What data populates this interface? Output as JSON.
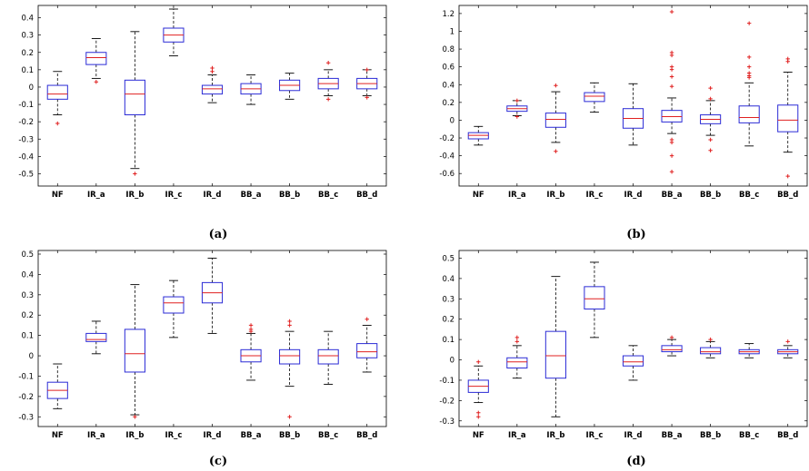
{
  "chart_data": [
    {
      "type": "boxplot",
      "label": "(a)",
      "categories": [
        "NF",
        "IR_a",
        "IR_b",
        "IR_c",
        "IR_d",
        "BB_a",
        "BB_b",
        "BB_c",
        "BB_d"
      ],
      "ylim": [
        -0.55,
        0.45
      ],
      "yticks": [
        "0.4",
        "0.3",
        "0.2",
        "0.1",
        "0",
        "-0.1",
        "-0.2",
        "-0.3",
        "-0.4",
        "-0.5"
      ],
      "boxes": [
        {
          "wl": -0.16,
          "q1": -0.07,
          "med": -0.04,
          "q3": 0.01,
          "wh": 0.09,
          "outliers": [
            -0.21
          ]
        },
        {
          "wl": 0.05,
          "q1": 0.13,
          "med": 0.17,
          "q3": 0.2,
          "wh": 0.28,
          "outliers": [
            0.03
          ]
        },
        {
          "wl": -0.47,
          "q1": -0.16,
          "med": -0.04,
          "q3": 0.04,
          "wh": 0.32,
          "outliers": [
            -0.5
          ]
        },
        {
          "wl": 0.18,
          "q1": 0.26,
          "med": 0.3,
          "q3": 0.34,
          "wh": 0.45,
          "outliers": []
        },
        {
          "wl": -0.09,
          "q1": -0.04,
          "med": -0.01,
          "q3": 0.01,
          "wh": 0.07,
          "outliers": [
            0.09,
            0.11
          ]
        },
        {
          "wl": -0.1,
          "q1": -0.04,
          "med": -0.01,
          "q3": 0.02,
          "wh": 0.07,
          "outliers": []
        },
        {
          "wl": -0.07,
          "q1": -0.02,
          "med": 0.01,
          "q3": 0.04,
          "wh": 0.08,
          "outliers": []
        },
        {
          "wl": -0.05,
          "q1": -0.01,
          "med": 0.02,
          "q3": 0.05,
          "wh": 0.1,
          "outliers": [
            0.14,
            -0.07
          ]
        },
        {
          "wl": -0.05,
          "q1": -0.01,
          "med": 0.02,
          "q3": 0.05,
          "wh": 0.1,
          "outliers": [
            0.1,
            -0.06
          ]
        }
      ]
    },
    {
      "type": "boxplot",
      "label": "(b)",
      "categories": [
        "NF",
        "IR_a",
        "IR_b",
        "IR_c",
        "IR_d",
        "BB_a",
        "BB_b",
        "BB_c",
        "BB_d"
      ],
      "ylim": [
        -0.7,
        1.25
      ],
      "yticks": [
        "1.2",
        "1",
        "0.8",
        "0.6",
        "0.4",
        "0.2",
        "0",
        "-0.2",
        "-0.4",
        "-0.6"
      ],
      "boxes": [
        {
          "wl": -0.28,
          "q1": -0.21,
          "med": -0.17,
          "q3": -0.14,
          "wh": -0.07,
          "outliers": []
        },
        {
          "wl": 0.05,
          "q1": 0.1,
          "med": 0.13,
          "q3": 0.16,
          "wh": 0.22,
          "outliers": [
            0.04,
            0.22
          ]
        },
        {
          "wl": -0.25,
          "q1": -0.08,
          "med": 0.01,
          "q3": 0.08,
          "wh": 0.32,
          "outliers": [
            -0.35,
            0.39
          ]
        },
        {
          "wl": 0.09,
          "q1": 0.21,
          "med": 0.27,
          "q3": 0.31,
          "wh": 0.42,
          "outliers": []
        },
        {
          "wl": -0.28,
          "q1": -0.09,
          "med": 0.02,
          "q3": 0.13,
          "wh": 0.41,
          "outliers": []
        },
        {
          "wl": -0.15,
          "q1": -0.02,
          "med": 0.04,
          "q3": 0.11,
          "wh": 0.25,
          "outliers": [
            1.22,
            0.76,
            0.73,
            0.6,
            0.57,
            0.49,
            0.38,
            -0.22,
            -0.25,
            -0.4,
            -0.58
          ]
        },
        {
          "wl": -0.17,
          "q1": -0.04,
          "med": 0.01,
          "q3": 0.06,
          "wh": 0.22,
          "outliers": [
            0.36,
            0.24,
            -0.22,
            -0.34
          ]
        },
        {
          "wl": -0.29,
          "q1": -0.03,
          "med": 0.03,
          "q3": 0.16,
          "wh": 0.42,
          "outliers": [
            1.09,
            0.71,
            0.6,
            0.53,
            0.5,
            0.48
          ]
        },
        {
          "wl": -0.36,
          "q1": -0.13,
          "med": 0.0,
          "q3": 0.17,
          "wh": 0.54,
          "outliers": [
            0.69,
            0.66,
            -0.63
          ]
        }
      ]
    },
    {
      "type": "boxplot",
      "label": "(c)",
      "categories": [
        "NF",
        "IR_a",
        "IR_b",
        "IR_c",
        "IR_d",
        "BB_a",
        "BB_b",
        "BB_c",
        "BB_d"
      ],
      "ylim": [
        -0.33,
        0.5
      ],
      "yticks": [
        "0.5",
        "0.4",
        "0.3",
        "0.2",
        "0.1",
        "0",
        "-0.1",
        "-0.2",
        "-0.3"
      ],
      "boxes": [
        {
          "wl": -0.26,
          "q1": -0.21,
          "med": -0.17,
          "q3": -0.13,
          "wh": -0.04,
          "outliers": []
        },
        {
          "wl": 0.01,
          "q1": 0.07,
          "med": 0.08,
          "q3": 0.11,
          "wh": 0.17,
          "outliers": []
        },
        {
          "wl": -0.29,
          "q1": -0.08,
          "med": 0.01,
          "q3": 0.13,
          "wh": 0.35,
          "outliers": [
            -0.3
          ]
        },
        {
          "wl": 0.09,
          "q1": 0.21,
          "med": 0.26,
          "q3": 0.29,
          "wh": 0.37,
          "outliers": []
        },
        {
          "wl": 0.11,
          "q1": 0.26,
          "med": 0.31,
          "q3": 0.36,
          "wh": 0.48,
          "outliers": []
        },
        {
          "wl": -0.12,
          "q1": -0.03,
          "med": 0.0,
          "q3": 0.03,
          "wh": 0.11,
          "outliers": [
            0.12,
            0.13,
            0.15
          ]
        },
        {
          "wl": -0.15,
          "q1": -0.04,
          "med": 0.0,
          "q3": 0.03,
          "wh": 0.12,
          "outliers": [
            0.15,
            0.17,
            -0.3
          ]
        },
        {
          "wl": -0.14,
          "q1": -0.04,
          "med": 0.0,
          "q3": 0.03,
          "wh": 0.12,
          "outliers": []
        },
        {
          "wl": -0.08,
          "q1": -0.01,
          "med": 0.02,
          "q3": 0.06,
          "wh": 0.15,
          "outliers": [
            0.18
          ]
        }
      ]
    },
    {
      "type": "boxplot",
      "label": "(d)",
      "categories": [
        "NF",
        "IR_a",
        "IR_b",
        "IR_c",
        "IR_d",
        "BB_a",
        "BB_b",
        "BB_c",
        "BB_d"
      ],
      "ylim": [
        -0.31,
        0.52
      ],
      "yticks": [
        "0.5",
        "0.4",
        "0.3",
        "0.2",
        "0.1",
        "0",
        "-0.1",
        "-0.2",
        "-0.3"
      ],
      "boxes": [
        {
          "wl": -0.21,
          "q1": -0.16,
          "med": -0.13,
          "q3": -0.1,
          "wh": -0.03,
          "outliers": [
            -0.01,
            -0.26,
            -0.28
          ]
        },
        {
          "wl": -0.09,
          "q1": -0.04,
          "med": -0.01,
          "q3": 0.01,
          "wh": 0.07,
          "outliers": [
            0.09,
            0.11
          ]
        },
        {
          "wl": -0.28,
          "q1": -0.09,
          "med": 0.02,
          "q3": 0.14,
          "wh": 0.41,
          "outliers": []
        },
        {
          "wl": 0.11,
          "q1": 0.25,
          "med": 0.3,
          "q3": 0.36,
          "wh": 0.48,
          "outliers": []
        },
        {
          "wl": -0.1,
          "q1": -0.03,
          "med": -0.01,
          "q3": 0.02,
          "wh": 0.07,
          "outliers": []
        },
        {
          "wl": 0.02,
          "q1": 0.04,
          "med": 0.05,
          "q3": 0.07,
          "wh": 0.1,
          "outliers": [
            0.11
          ]
        },
        {
          "wl": 0.01,
          "q1": 0.03,
          "med": 0.04,
          "q3": 0.06,
          "wh": 0.09,
          "outliers": [
            0.1
          ]
        },
        {
          "wl": 0.01,
          "q1": 0.03,
          "med": 0.04,
          "q3": 0.05,
          "wh": 0.08,
          "outliers": []
        },
        {
          "wl": 0.01,
          "q1": 0.03,
          "med": 0.04,
          "q3": 0.05,
          "wh": 0.07,
          "outliers": [
            0.09
          ]
        }
      ]
    }
  ],
  "colors": {
    "box": "#2b2bd6",
    "median": "#e02020",
    "whisker": "#000000",
    "outlier": "#e02020",
    "axis": "#000000"
  }
}
